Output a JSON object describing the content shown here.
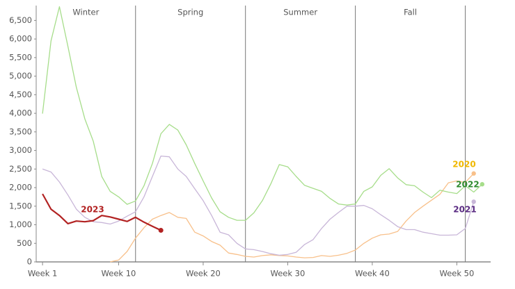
{
  "chart_data": {
    "type": "line",
    "x": [
      1,
      2,
      3,
      4,
      5,
      6,
      7,
      8,
      9,
      10,
      11,
      12,
      13,
      14,
      15,
      16,
      17,
      18,
      19,
      20,
      21,
      22,
      23,
      24,
      25,
      26,
      27,
      28,
      29,
      30,
      31,
      32,
      33,
      34,
      35,
      36,
      37,
      38,
      39,
      40,
      41,
      42,
      43,
      44,
      45,
      46,
      47,
      48,
      49,
      50,
      51,
      52,
      53
    ],
    "series": [
      {
        "name": "2020",
        "color": "#f8c08a",
        "label_color": "#f0b800",
        "values": [
          null,
          null,
          null,
          null,
          null,
          null,
          null,
          null,
          0,
          50,
          280,
          640,
          920,
          1150,
          1250,
          1330,
          1200,
          1170,
          800,
          700,
          550,
          450,
          240,
          200,
          150,
          130,
          170,
          190,
          170,
          160,
          130,
          110,
          120,
          170,
          150,
          180,
          230,
          320,
          500,
          640,
          730,
          750,
          820,
          1100,
          1330,
          1500,
          1660,
          1820,
          2130,
          2180,
          2140,
          2380,
          null
        ]
      },
      {
        "name": "2021",
        "color": "#c8b6d8",
        "label_color": "#5b2c83",
        "values": [
          2500,
          2420,
          2150,
          1800,
          1420,
          1200,
          1080,
          1060,
          1020,
          1100,
          1230,
          1350,
          1750,
          2300,
          2850,
          2830,
          2500,
          2300,
          1970,
          1650,
          1250,
          800,
          730,
          500,
          350,
          330,
          280,
          220,
          180,
          200,
          260,
          470,
          600,
          900,
          1150,
          1330,
          1500,
          1500,
          1520,
          1430,
          1270,
          1120,
          950,
          870,
          870,
          800,
          760,
          720,
          720,
          730,
          900,
          1620,
          null
        ]
      },
      {
        "name": "2022",
        "color": "#a6dd8a",
        "label_color": "#2e8b2e",
        "values": [
          3990,
          5950,
          6870,
          5800,
          4700,
          3850,
          3250,
          2300,
          1900,
          1750,
          1550,
          1640,
          2050,
          2650,
          3450,
          3700,
          3550,
          3150,
          2650,
          2180,
          1720,
          1350,
          1200,
          1120,
          1120,
          1320,
          1650,
          2100,
          2620,
          2560,
          2300,
          2060,
          1980,
          1900,
          1710,
          1560,
          1530,
          1560,
          1900,
          2020,
          2330,
          2510,
          2260,
          2080,
          2050,
          1880,
          1730,
          1930,
          1880,
          1840,
          2050,
          1880,
          2090
        ]
      },
      {
        "name": "2023",
        "color": "#b22222",
        "label_color": "#b22222",
        "values": [
          1830,
          1420,
          1250,
          1030,
          1100,
          1080,
          1110,
          1250,
          1210,
          1150,
          1090,
          1200,
          1070,
          960,
          850,
          null,
          null,
          null,
          null,
          null,
          null,
          null,
          null,
          null,
          null,
          null,
          null,
          null,
          null,
          null,
          null,
          null,
          null,
          null,
          null,
          null,
          null,
          null,
          null,
          null,
          null,
          null,
          null,
          null,
          null,
          null,
          null,
          null,
          null,
          null,
          null,
          null,
          null
        ]
      }
    ],
    "dividers": [
      12,
      25,
      38,
      51
    ],
    "region_labels": [
      "Winter",
      "Spring",
      "Summer",
      "Fall"
    ],
    "xlim": [
      0.25,
      54
    ],
    "xticks": [
      {
        "value": 1,
        "label": "Week 1"
      },
      {
        "value": 10,
        "label": "Week 10"
      },
      {
        "value": 20,
        "label": "Week 20"
      },
      {
        "value": 30,
        "label": "Week 30"
      },
      {
        "value": 40,
        "label": "Week 40"
      },
      {
        "value": 50,
        "label": "Week 50"
      }
    ],
    "ylim": [
      0,
      6900
    ],
    "yticks": [
      0,
      500,
      {
        "value": 1000,
        "label": "1,000"
      },
      {
        "value": 1500,
        "label": "1,500"
      },
      {
        "value": 2000,
        "label": "2,000"
      },
      {
        "value": 2500,
        "label": "2,500"
      },
      {
        "value": 3000,
        "label": "3,000"
      },
      {
        "value": 3500,
        "label": "3,500"
      },
      {
        "value": 4000,
        "label": "4,000"
      },
      {
        "value": 4500,
        "label": "4,500"
      },
      {
        "value": 5000,
        "label": "5,000"
      },
      {
        "value": 5500,
        "label": "5,500"
      },
      {
        "value": 6000,
        "label": "6,000"
      },
      {
        "value": 6500,
        "label": "6,500"
      }
    ]
  }
}
